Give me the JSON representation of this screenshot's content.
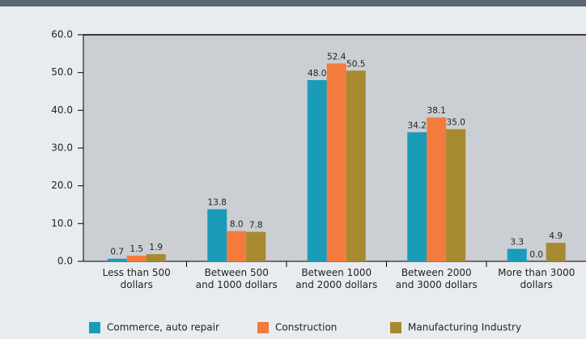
{
  "chart_data": {
    "type": "bar",
    "categories": [
      "Less than 500\ndollars",
      "Between 500\nand 1000 dollars",
      "Between 1000\nand 2000 dollars",
      "Between 2000\nand 3000 dollars",
      "More than 3000\ndollars"
    ],
    "series": [
      {
        "name": "Commerce, auto repair",
        "color": "#1a9cb8",
        "values": [
          0.7,
          13.8,
          48.0,
          34.2,
          3.3
        ],
        "value_labels": [
          "0.7",
          "13.8",
          "48.0",
          "34.2",
          "3.3"
        ]
      },
      {
        "name": "Construction",
        "color": "#f47b3e",
        "values": [
          1.5,
          8.0,
          52.4,
          38.1,
          0.0
        ],
        "value_labels": [
          "1.5",
          "8.0",
          "52.4",
          "38.1",
          "0.0"
        ]
      },
      {
        "name": "Manufacturing Industry",
        "color": "#a78a2f",
        "values": [
          1.9,
          7.8,
          50.5,
          35.0,
          4.9
        ],
        "value_labels": [
          "1.9",
          "7.8",
          "50.5",
          "35.0",
          "4.9"
        ]
      }
    ],
    "ylim": [
      0,
      60
    ],
    "yticks": [
      {
        "value": 0,
        "label": "0.0"
      },
      {
        "value": 10,
        "label": "10.0"
      },
      {
        "value": 20,
        "label": "20.0"
      },
      {
        "value": 30,
        "label": "30.0"
      },
      {
        "value": 40,
        "label": "40.0"
      },
      {
        "value": 50,
        "label": "50.0"
      },
      {
        "value": 60,
        "label": "60.0"
      }
    ],
    "legend": "bottom"
  }
}
